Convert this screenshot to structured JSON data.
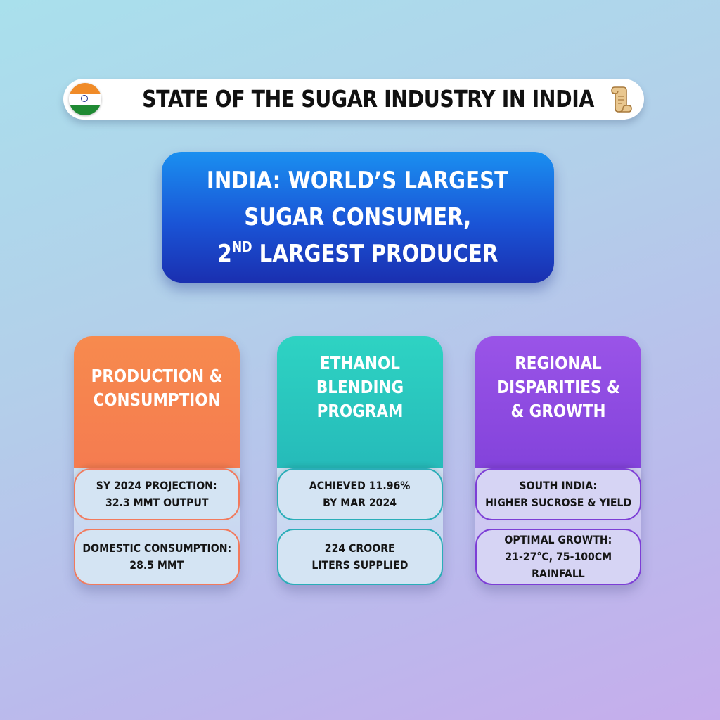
{
  "title": {
    "text": "STATE OF THE SUGAR INDUSTRY IN INDIA",
    "left_icon": "india-flag-icon",
    "right_icon": "scroll-icon"
  },
  "headline": {
    "line1": "INDIA: WORLD’S LARGEST",
    "line2": "SUGAR CONSUMER,",
    "line3_prefix": "2",
    "line3_sup": "ND",
    "line3_rest": " LARGEST PRODUCER"
  },
  "cards": [
    {
      "title_lines": [
        "PRODUCTION &",
        "CONSUMPTION"
      ],
      "color": "#f47a50",
      "pills": [
        [
          "SY 2024 PROJECTION:",
          "32.3 MMT OUTPUT"
        ],
        [
          "DOMESTIC CONSUMPTION:",
          "28.5 MMT"
        ]
      ]
    },
    {
      "title_lines": [
        "ETHANOL",
        "BLENDING",
        "PROGRAM"
      ],
      "color": "#22b8b8",
      "pills": [
        [
          "ACHIEVED 11.96%",
          "BY MAR 2024"
        ],
        [
          "224 CROORE",
          "LITERS SUPPLIED"
        ]
      ]
    },
    {
      "title_lines": [
        "REGIONAL",
        "DISPARITIES &",
        "& GROWTH"
      ],
      "color": "#8445dc",
      "pills": [
        [
          "SOUTH INDIA:",
          "HIGHER SUCROSE & YIELD"
        ],
        [
          "OPTIMAL GROWTH:",
          "21-27°C, 75-100CM",
          "RAINFALL"
        ]
      ]
    }
  ]
}
